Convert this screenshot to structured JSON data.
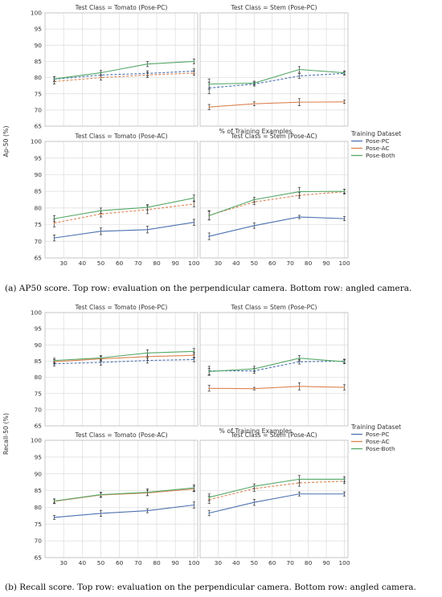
{
  "figure": {
    "legend_title": "Training Dataset",
    "legend_placement": "right-middle",
    "series_colors": {
      "Pose-PC": "#4c72b0",
      "Pose-AC": "#dd8452",
      "Pose-Both": "#55a868"
    },
    "captions": {
      "a": {
        "label": "(a)",
        "text": "AP50 score. Top row: evaluation on the perpendicular camera. Bottom row: angled camera."
      },
      "b": {
        "label": "(b)",
        "text": "Recall score. Top row: evaluation on the perpendicular camera. Bottom row: angled camera."
      }
    }
  },
  "chart_data": [
    {
      "type": "line",
      "group": "a",
      "title": "Test Class = Tomato (Pose-PC)",
      "ylabel": "",
      "xlabel": "",
      "x": [
        25,
        50,
        75,
        100
      ],
      "xlim": [
        20,
        102
      ],
      "ylim": [
        65,
        100
      ],
      "yticks": [
        65,
        70,
        75,
        80,
        85,
        90,
        95,
        100
      ],
      "xticks": [],
      "show_yticks": true,
      "show_xticks": false,
      "series": [
        {
          "name": "Pose-PC",
          "values": [
            79.5,
            80.8,
            81.3,
            82.0
          ],
          "err": [
            0.8,
            0.8,
            0.8,
            0.7
          ],
          "dashed": true
        },
        {
          "name": "Pose-AC",
          "values": [
            78.8,
            80.0,
            80.8,
            81.4
          ],
          "err": [
            0.8,
            0.8,
            0.8,
            0.7
          ],
          "dashed": true
        },
        {
          "name": "Pose-Both",
          "values": [
            79.6,
            81.5,
            84.2,
            85.0
          ],
          "err": [
            0.7,
            0.7,
            0.8,
            0.7
          ],
          "dashed": false
        }
      ]
    },
    {
      "type": "line",
      "group": "a",
      "title": "Test Class = Stem (Pose-PC)",
      "ylabel": "",
      "xlabel": "% of Training Examples",
      "x": [
        25,
        50,
        75,
        100
      ],
      "xlim": [
        20,
        102
      ],
      "ylim": [
        65,
        100
      ],
      "yticks": [],
      "xticks": [],
      "show_yticks": false,
      "show_xticks": false,
      "series": [
        {
          "name": "Pose-PC",
          "values": [
            76.8,
            78.0,
            80.5,
            81.3
          ],
          "err": [
            1.8,
            0.6,
            0.8,
            0.5
          ],
          "dashed": true
        },
        {
          "name": "Pose-AC",
          "values": [
            70.9,
            71.9,
            72.4,
            72.5
          ],
          "err": [
            0.8,
            0.6,
            1.1,
            0.5
          ],
          "dashed": false
        },
        {
          "name": "Pose-Both",
          "values": [
            78.0,
            78.3,
            82.5,
            81.5
          ],
          "err": [
            1.6,
            0.6,
            0.9,
            0.6
          ],
          "dashed": false
        }
      ]
    },
    {
      "type": "line",
      "group": "a",
      "title": "Test Class = Tomato (Pose-AC)",
      "ylabel": "Ap-50 (%)",
      "xlabel": "",
      "x": [
        25,
        50,
        75,
        100
      ],
      "xlim": [
        20,
        102
      ],
      "ylim": [
        65,
        100
      ],
      "yticks": [
        65,
        70,
        75,
        80,
        85,
        90,
        95,
        100
      ],
      "xticks": [
        30,
        40,
        50,
        60,
        70,
        80,
        90,
        100
      ],
      "show_yticks": true,
      "show_xticks": true,
      "series": [
        {
          "name": "Pose-PC",
          "values": [
            71.0,
            73.0,
            73.5,
            75.7
          ],
          "err": [
            0.9,
            1.0,
            1.0,
            0.9
          ],
          "dashed": false
        },
        {
          "name": "Pose-AC",
          "values": [
            75.5,
            78.2,
            79.5,
            81.2
          ],
          "err": [
            1.2,
            0.9,
            1.2,
            0.8
          ],
          "dashed": true
        },
        {
          "name": "Pose-Both",
          "values": [
            76.8,
            79.2,
            80.2,
            83.0
          ],
          "err": [
            0.9,
            0.8,
            0.8,
            0.9
          ],
          "dashed": false
        }
      ]
    },
    {
      "type": "line",
      "group": "a",
      "title": "Test Class = Stem (Pose-AC)",
      "ylabel": "",
      "xlabel": "",
      "x": [
        25,
        50,
        75,
        100
      ],
      "xlim": [
        20,
        102
      ],
      "ylim": [
        65,
        100
      ],
      "yticks": [],
      "xticks": [
        30,
        40,
        50,
        60,
        70,
        80,
        90,
        100
      ],
      "show_yticks": false,
      "show_xticks": true,
      "series": [
        {
          "name": "Pose-PC",
          "values": [
            71.5,
            74.7,
            77.3,
            76.8
          ],
          "err": [
            1.0,
            0.8,
            0.5,
            0.6
          ],
          "dashed": false
        },
        {
          "name": "Pose-AC",
          "values": [
            77.8,
            81.8,
            83.8,
            84.9
          ],
          "err": [
            1.4,
            0.8,
            0.9,
            0.7
          ],
          "dashed": true
        },
        {
          "name": "Pose-Both",
          "values": [
            77.7,
            82.5,
            84.9,
            85.0
          ],
          "err": [
            1.3,
            0.7,
            1.3,
            0.6
          ],
          "dashed": false
        }
      ]
    },
    {
      "type": "line",
      "group": "b",
      "title": "Test Class = Tomato (Pose-PC)",
      "ylabel": "Recall-50 (%)",
      "xlabel": "",
      "x": [
        25,
        50,
        75,
        100
      ],
      "xlim": [
        20,
        102
      ],
      "ylim": [
        65,
        100
      ],
      "yticks": [
        65,
        70,
        75,
        80,
        85,
        90,
        95,
        100
      ],
      "xticks": [],
      "show_yticks": true,
      "show_xticks": false,
      "series": [
        {
          "name": "Pose-PC",
          "values": [
            84.2,
            84.6,
            85.2,
            85.5
          ],
          "err": [
            0.7,
            0.9,
            0.8,
            0.7
          ],
          "dashed": true
        },
        {
          "name": "Pose-AC",
          "values": [
            84.8,
            85.7,
            86.4,
            86.8
          ],
          "err": [
            0.7,
            0.8,
            1.1,
            0.9
          ],
          "dashed": false
        },
        {
          "name": "Pose-Both",
          "values": [
            85.2,
            86.0,
            87.5,
            88.0
          ],
          "err": [
            0.7,
            0.7,
            1.0,
            0.9
          ],
          "dashed": false
        }
      ]
    },
    {
      "type": "line",
      "group": "b",
      "title": "Test Class = Stem (Pose-PC)",
      "ylabel": "",
      "xlabel": "% of Training Examples",
      "x": [
        25,
        50,
        75,
        100
      ],
      "xlim": [
        20,
        102
      ],
      "ylim": [
        65,
        100
      ],
      "yticks": [],
      "xticks": [],
      "show_yticks": false,
      "show_xticks": false,
      "series": [
        {
          "name": "Pose-PC",
          "values": [
            82.0,
            82.0,
            84.8,
            85.0
          ],
          "err": [
            1.4,
            0.8,
            0.7,
            0.6
          ],
          "dashed": true
        },
        {
          "name": "Pose-AC",
          "values": [
            76.6,
            76.5,
            77.2,
            76.9
          ],
          "err": [
            0.9,
            0.4,
            1.1,
            0.8
          ],
          "dashed": false
        },
        {
          "name": "Pose-Both",
          "values": [
            81.8,
            82.6,
            85.9,
            84.8
          ],
          "err": [
            1.0,
            0.8,
            0.8,
            0.6
          ],
          "dashed": false
        }
      ]
    },
    {
      "type": "line",
      "group": "b",
      "title": "Test Class = Tomato (Pose-AC)",
      "ylabel": "Recall-50 (%)",
      "xlabel": "",
      "x": [
        25,
        50,
        75,
        100
      ],
      "xlim": [
        20,
        102
      ],
      "ylim": [
        65,
        100
      ],
      "yticks": [
        65,
        70,
        75,
        80,
        85,
        90,
        95,
        100
      ],
      "xticks": [
        30,
        40,
        50,
        60,
        70,
        80,
        90,
        100
      ],
      "show_yticks": true,
      "show_xticks": true,
      "series": [
        {
          "name": "Pose-PC",
          "values": [
            77.0,
            78.2,
            79.0,
            80.7
          ],
          "err": [
            0.6,
            0.9,
            0.6,
            0.9
          ],
          "dashed": false
        },
        {
          "name": "Pose-AC",
          "values": [
            81.8,
            83.7,
            84.3,
            85.5
          ],
          "err": [
            0.7,
            0.7,
            0.8,
            0.8
          ],
          "dashed": false
        },
        {
          "name": "Pose-Both",
          "values": [
            81.9,
            83.8,
            84.5,
            85.8
          ],
          "err": [
            0.6,
            0.7,
            1.0,
            0.9
          ],
          "dashed": false
        }
      ]
    },
    {
      "type": "line",
      "group": "b",
      "title": "Test Class = Stem (Pose-AC)",
      "ylabel": "",
      "xlabel": "",
      "x": [
        25,
        50,
        75,
        100
      ],
      "xlim": [
        20,
        102
      ],
      "ylim": [
        65,
        100
      ],
      "yticks": [],
      "xticks": [
        30,
        40,
        50,
        60,
        70,
        80,
        90,
        100
      ],
      "show_yticks": false,
      "show_xticks": true,
      "series": [
        {
          "name": "Pose-PC",
          "values": [
            78.3,
            81.5,
            84.0,
            84.0
          ],
          "err": [
            0.8,
            0.9,
            0.6,
            0.6
          ],
          "dashed": false
        },
        {
          "name": "Pose-AC",
          "values": [
            82.3,
            85.6,
            87.3,
            87.8
          ],
          "err": [
            1.1,
            0.8,
            1.0,
            0.7
          ],
          "dashed": true
        },
        {
          "name": "Pose-Both",
          "values": [
            83.0,
            86.3,
            88.4,
            88.4
          ],
          "err": [
            1.0,
            0.7,
            1.1,
            0.7
          ],
          "dashed": false
        }
      ]
    }
  ]
}
